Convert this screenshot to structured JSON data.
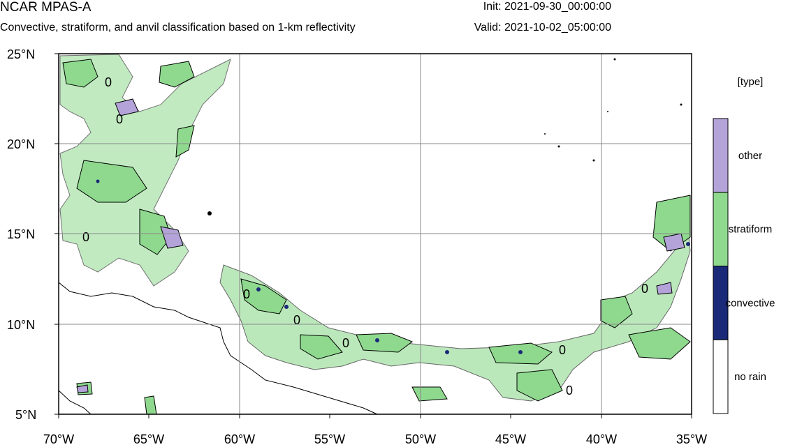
{
  "header": {
    "title": "NCAR MPAS-A",
    "subtitle": "Convective, stratiform, and anvil classification based on 1-km reflectivity",
    "init": "Init: 2021-09-30_00:00:00",
    "valid": "Valid: 2021-10-02_05:00:00"
  },
  "map": {
    "lon_range": [
      -70,
      -35
    ],
    "lat_range": [
      5,
      25
    ],
    "grid": true,
    "lat_labels": [
      "25°N",
      "20°N",
      "15°N",
      "10°N",
      "5°N"
    ],
    "lon_labels": [
      "70°W",
      "65°W",
      "60°W",
      "55°W",
      "50°W",
      "45°W",
      "40°W",
      "35°W"
    ],
    "contour_label": "0"
  },
  "legend": {
    "title": "[type]",
    "items": [
      {
        "label": "other",
        "color": "#b3a3d9"
      },
      {
        "label": "stratiform",
        "color": "#8fd98f"
      },
      {
        "label": "convective",
        "color": "#1a2a78"
      },
      {
        "label": "no rain",
        "color": "#ffffff"
      }
    ]
  },
  "colors": {
    "stratiform": "#8fd98f",
    "convective": "#1a2a78",
    "other": "#b3a3d9"
  }
}
